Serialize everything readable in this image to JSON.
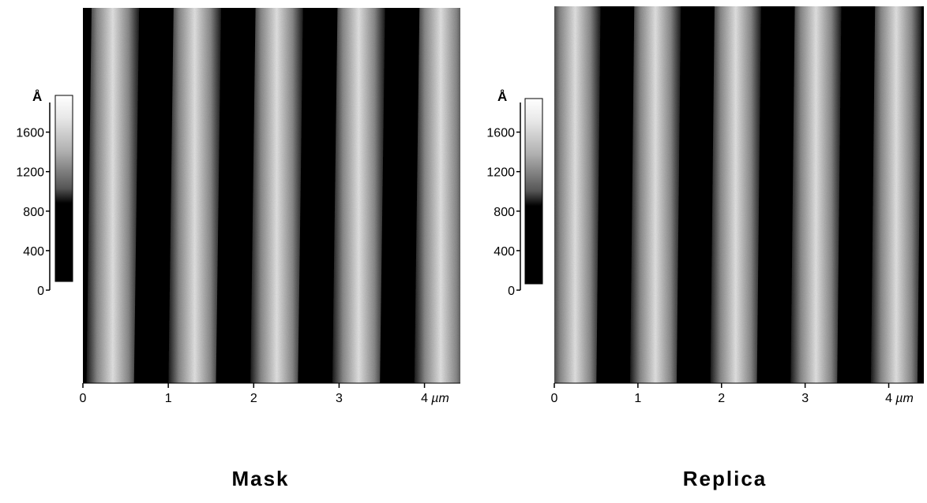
{
  "panels": [
    {
      "name": "mask",
      "caption": "Mask",
      "colorbar_unit": "Å",
      "colorbar_ticks": [
        "0",
        "400",
        "800",
        "1200",
        "1600"
      ],
      "colorbar_values": [
        0,
        400,
        800,
        1200,
        1600
      ],
      "colorbar_range": [
        0,
        1900
      ],
      "x_ticks": [
        "0",
        "1",
        "2",
        "3",
        "4"
      ],
      "x_unit": "µm",
      "x_range": [
        0,
        4.42
      ],
      "stripe_period_um": 0.96,
      "stripe_phase_um": 0.35,
      "stripe_tilt_um": -0.06
    },
    {
      "name": "replica",
      "caption": "Replica",
      "colorbar_unit": "Å",
      "colorbar_ticks": [
        "0",
        "400",
        "800",
        "1200",
        "1600"
      ],
      "colorbar_values": [
        0,
        400,
        800,
        1200,
        1600
      ],
      "colorbar_range": [
        0,
        1900
      ],
      "x_ticks": [
        "0",
        "1",
        "2",
        "3",
        "4"
      ],
      "x_unit": "µm",
      "x_range": [
        0,
        4.42
      ],
      "stripe_period_um": 0.96,
      "stripe_phase_um": 0.25,
      "stripe_tilt_um": -0.05
    }
  ]
}
